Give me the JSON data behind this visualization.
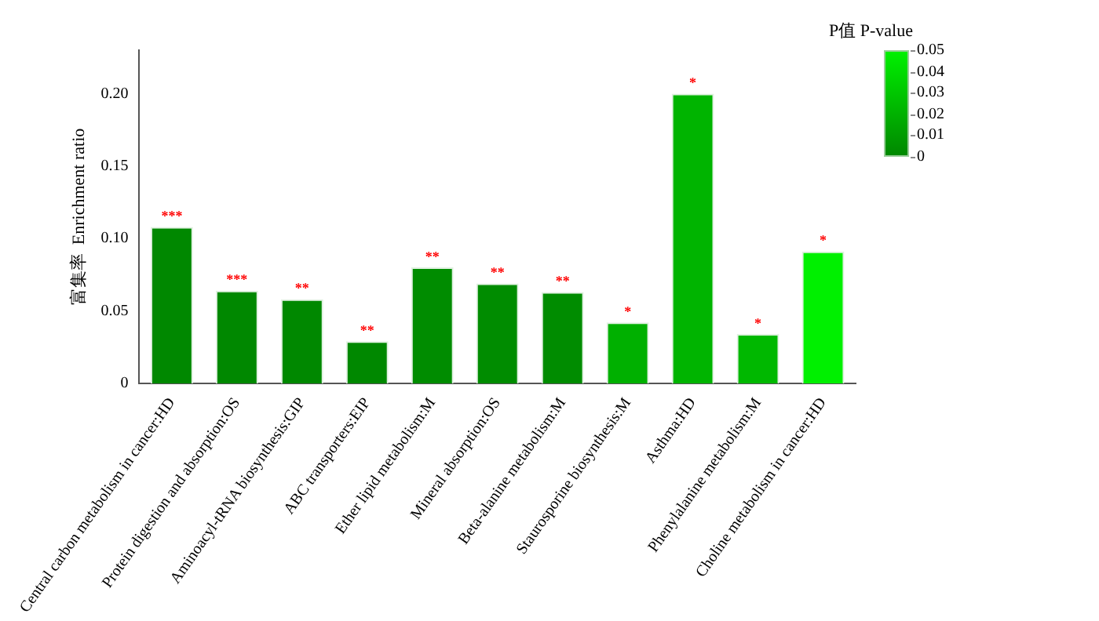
{
  "chart_data": {
    "type": "bar",
    "ylabel": "富集率  Enrichment ratio",
    "clabel": "P值  P-value",
    "categories": [
      "Central carbon metabolism in cancer:HD",
      "Protein digestion and absorption:OS",
      "Aminoacyl-tRNA biosynthesis:GIP",
      "ABC transporters:EIP",
      "Ether lipid metabolism:M",
      "Mineral absorption:OS",
      "Beta-alanine metabolism:M",
      "Staurosporine biosynthesis:M",
      "Asthma:HD",
      "Phenylalanine metabolism:M",
      "Choline metabolism in cancer:HD"
    ],
    "values": [
      0.108,
      0.064,
      0.058,
      0.029,
      0.08,
      0.069,
      0.063,
      0.042,
      0.2,
      0.034,
      0.091
    ],
    "colors": [
      "#008800",
      "#008800",
      "#008800",
      "#008800",
      "#008c00",
      "#008c00",
      "#008c00",
      "#00b000",
      "#00b400",
      "#00b800",
      "#00f000"
    ],
    "ylim": [
      0,
      0.23
    ],
    "yticks": [
      0,
      {
        "value": 0.05,
        "label": "0.05"
      },
      {
        "value": 0.1,
        "label": "0.10"
      },
      {
        "value": 0.15,
        "label": "0.15"
      },
      {
        "value": 0.2,
        "label": "0.20"
      }
    ],
    "clim": [
      0,
      0.05
    ],
    "cticks": [
      0,
      0.01,
      0.02,
      0.03,
      0.04,
      0.05
    ],
    "grid": false,
    "legend": false,
    "annotations": [
      {
        "text": "***",
        "x": "Central carbon metabolism in cancer:HD",
        "y": 0.108
      },
      {
        "text": "***",
        "x": "Protein digestion and absorption:OS",
        "y": 0.064
      },
      {
        "text": "**",
        "x": "Aminoacyl-tRNA biosynthesis:GIP",
        "y": 0.058
      },
      {
        "text": "**",
        "x": "ABC transporters:EIP",
        "y": 0.029
      },
      {
        "text": "**",
        "x": "Ether lipid metabolism:M",
        "y": 0.08
      },
      {
        "text": "**",
        "x": "Mineral absorption:OS",
        "y": 0.069
      },
      {
        "text": "**",
        "x": "Beta-alanine metabolism:M",
        "y": 0.063
      },
      {
        "text": "*",
        "x": "Staurosporine biosynthesis:M",
        "y": 0.042
      },
      {
        "text": "*",
        "x": "Asthma:HD",
        "y": 0.2
      },
      {
        "text": "*",
        "x": "Phenylalanine metabolism:M",
        "y": 0.034
      },
      {
        "text": "*",
        "x": "Choline metabolism in cancer:HD",
        "y": 0.091
      }
    ]
  }
}
